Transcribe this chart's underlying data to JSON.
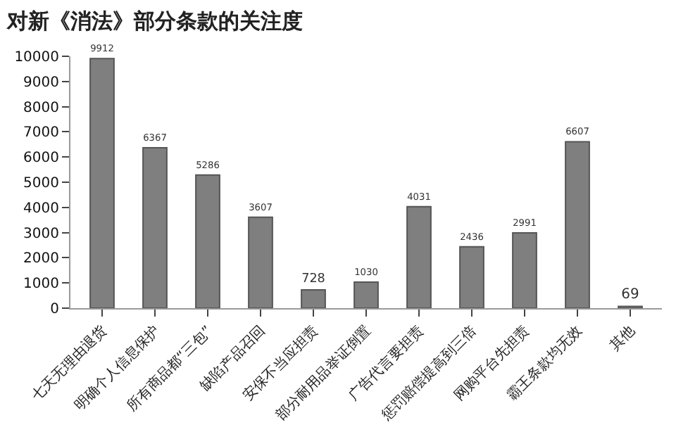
{
  "chart_data": {
    "type": "bar",
    "title": "对新《消法》部分条款的关注度",
    "categories": [
      "七天无理由退货",
      "明确个人信息保护",
      "所有商品都“三包”",
      "缺陷产品召回",
      "安保不当应担责",
      "部分耐用品举证倒置",
      "广告代言要担责",
      "惩罚赔偿提高到三倍",
      "网购平台先担责",
      "霸王条款均无效",
      "其他"
    ],
    "values": [
      9912,
      6367,
      5286,
      3607,
      728,
      1030,
      4031,
      2436,
      2991,
      6607,
      69
    ],
    "color": "#7f7f7f",
    "ylim": [
      0,
      10000
    ],
    "yticks": [
      0,
      1000,
      2000,
      3000,
      4000,
      5000,
      6000,
      7000,
      8000,
      9000,
      10000
    ],
    "data_labels": true,
    "grid": false,
    "legend": false
  }
}
